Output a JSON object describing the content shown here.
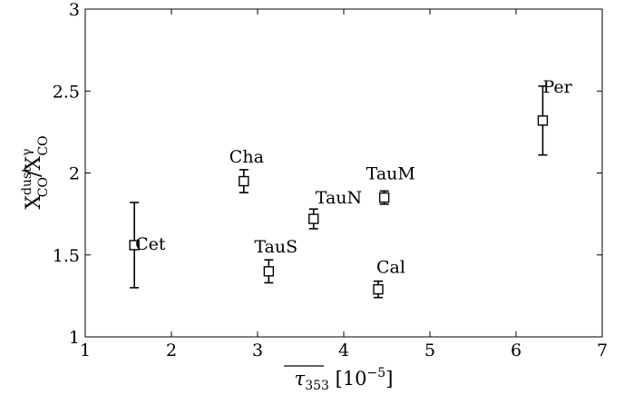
{
  "chart_data": {
    "type": "scatter",
    "title": "",
    "xlabel": {
      "base": "τ",
      "sub": "353",
      "unit_open": " [10",
      "unit_exp": "−5",
      "unit_close": "]"
    },
    "ylabel": {
      "num_base": "X",
      "num_sub": "CO",
      "num_sup": "dust",
      "sep": "/",
      "den_base": "X",
      "den_sub": "CO",
      "den_sup": "γ"
    },
    "xlim": [
      1,
      7
    ],
    "ylim": [
      1,
      3
    ],
    "xticks": [
      {
        "value": 1,
        "label": "1"
      },
      {
        "value": 2,
        "label": "2"
      },
      {
        "value": 3,
        "label": "3"
      },
      {
        "value": 4,
        "label": "4"
      },
      {
        "value": 5,
        "label": "5"
      },
      {
        "value": 6,
        "label": "6"
      },
      {
        "value": 7,
        "label": "7"
      }
    ],
    "yticks": [
      {
        "value": 1,
        "label": "1"
      },
      {
        "value": 1.5,
        "label": "1.5"
      },
      {
        "value": 2,
        "label": "2"
      },
      {
        "value": 2.5,
        "label": "2.5"
      },
      {
        "value": 3,
        "label": "3"
      }
    ],
    "grid": false,
    "marker": "open-square",
    "color": "#000000",
    "points": [
      {
        "label": "Cet",
        "x": 1.57,
        "y": 1.56,
        "err_low": 0.26,
        "err_high": 0.26
      },
      {
        "label": "Cha",
        "x": 2.84,
        "y": 1.95,
        "err_low": 0.07,
        "err_high": 0.07
      },
      {
        "label": "TauS",
        "x": 3.13,
        "y": 1.4,
        "err_low": 0.07,
        "err_high": 0.07
      },
      {
        "label": "TauN",
        "x": 3.65,
        "y": 1.72,
        "err_low": 0.06,
        "err_high": 0.06
      },
      {
        "label": "TauM",
        "x": 4.47,
        "y": 1.85,
        "err_low": 0.04,
        "err_high": 0.04
      },
      {
        "label": "Cal",
        "x": 4.4,
        "y": 1.29,
        "err_low": 0.05,
        "err_high": 0.05
      },
      {
        "label": "Per",
        "x": 6.31,
        "y": 2.32,
        "err_low": 0.21,
        "err_high": 0.21
      }
    ]
  }
}
